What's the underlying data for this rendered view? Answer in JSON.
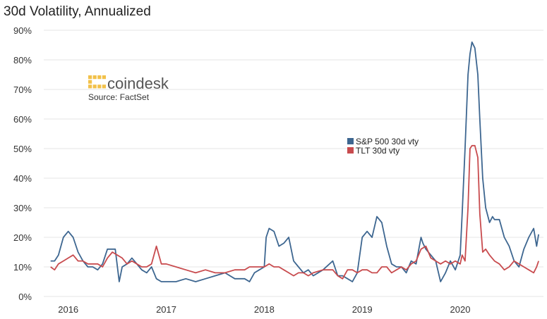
{
  "colors": {
    "sp500": "#3d6690",
    "tlt": "#c84b4e",
    "logo": "#f2c14a",
    "grid": "#e6e6e6"
  },
  "branding": {
    "logo_icon": "coindesk-logo-icon",
    "name": "coindesk",
    "source": "Source: FactSet"
  },
  "chart_data": {
    "type": "line",
    "title": "30d Volatility, Annualized",
    "xlabel": "",
    "ylabel": "",
    "xlim": [
      2015.85,
      2020.95
    ],
    "ylim": [
      0,
      90
    ],
    "y_ticks": [
      0,
      10,
      20,
      30,
      40,
      50,
      60,
      70,
      80,
      90
    ],
    "y_tick_labels": [
      "0%",
      "10%",
      "20%",
      "30%",
      "40%",
      "50%",
      "60%",
      "70%",
      "80%",
      "90%"
    ],
    "x_ticks": [
      2016.1,
      2017.1,
      2018.1,
      2019.1,
      2020.1
    ],
    "x_tick_labels": [
      "2016",
      "2017",
      "2018",
      "2019",
      "2020"
    ],
    "grid": "horizontal",
    "legend": "center-right",
    "series": [
      {
        "name": "S&P 500 30d vty",
        "color": "#3d6690",
        "x": [
          2015.92,
          2015.96,
          2016.0,
          2016.05,
          2016.1,
          2016.15,
          2016.2,
          2016.25,
          2016.3,
          2016.35,
          2016.4,
          2016.45,
          2016.5,
          2016.52,
          2016.58,
          2016.62,
          2016.65,
          2016.7,
          2016.75,
          2016.8,
          2016.85,
          2016.9,
          2016.95,
          2017.0,
          2017.05,
          2017.1,
          2017.2,
          2017.3,
          2017.4,
          2017.5,
          2017.6,
          2017.7,
          2017.8,
          2017.9,
          2017.95,
          2018.0,
          2018.05,
          2018.1,
          2018.12,
          2018.15,
          2018.2,
          2018.25,
          2018.3,
          2018.35,
          2018.4,
          2018.45,
          2018.5,
          2018.55,
          2018.6,
          2018.7,
          2018.8,
          2018.85,
          2018.9,
          2018.95,
          2019.0,
          2019.05,
          2019.1,
          2019.15,
          2019.2,
          2019.25,
          2019.3,
          2019.35,
          2019.4,
          2019.45,
          2019.5,
          2019.55,
          2019.6,
          2019.65,
          2019.7,
          2019.72,
          2019.75,
          2019.8,
          2019.85,
          2019.9,
          2019.95,
          2020.0,
          2020.05,
          2020.1,
          2020.12,
          2020.15,
          2020.18,
          2020.2,
          2020.22,
          2020.25,
          2020.28,
          2020.3,
          2020.33,
          2020.36,
          2020.4,
          2020.43,
          2020.45,
          2020.5,
          2020.55,
          2020.6,
          2020.65,
          2020.7,
          2020.75,
          2020.8,
          2020.85,
          2020.88,
          2020.9
        ],
        "values": [
          12,
          12,
          14,
          20,
          22,
          20,
          15,
          12,
          10,
          10,
          9,
          11,
          16,
          16,
          16,
          5,
          10,
          11,
          13,
          11,
          9,
          8,
          10,
          6,
          5,
          5,
          5,
          6,
          5,
          6,
          7,
          8,
          6,
          6,
          5,
          8,
          9,
          10,
          20,
          23,
          22,
          17,
          18,
          20,
          12,
          10,
          8,
          9,
          7,
          9,
          12,
          7,
          7,
          6,
          5,
          8,
          20,
          22,
          20,
          27,
          25,
          17,
          11,
          10,
          10,
          8,
          12,
          11,
          20,
          18,
          16,
          14,
          12,
          5,
          8,
          12,
          9,
          14,
          28,
          50,
          75,
          82,
          86,
          84,
          75,
          60,
          40,
          30,
          25,
          27,
          26,
          26,
          20,
          17,
          12,
          10,
          16,
          20,
          23,
          17,
          21
        ]
      },
      {
        "name": "TLT 30d vty",
        "color": "#c84b4e",
        "x": [
          2015.92,
          2015.96,
          2016.0,
          2016.05,
          2016.1,
          2016.15,
          2016.2,
          2016.25,
          2016.3,
          2016.35,
          2016.4,
          2016.45,
          2016.5,
          2016.55,
          2016.6,
          2016.65,
          2016.7,
          2016.75,
          2016.8,
          2016.85,
          2016.9,
          2016.95,
          2017.0,
          2017.05,
          2017.1,
          2017.2,
          2017.3,
          2017.4,
          2017.5,
          2017.6,
          2017.7,
          2017.8,
          2017.9,
          2017.95,
          2018.0,
          2018.05,
          2018.1,
          2018.15,
          2018.2,
          2018.25,
          2018.3,
          2018.35,
          2018.4,
          2018.45,
          2018.5,
          2018.55,
          2018.6,
          2018.7,
          2018.8,
          2018.85,
          2018.9,
          2018.95,
          2019.0,
          2019.05,
          2019.1,
          2019.15,
          2019.2,
          2019.25,
          2019.3,
          2019.35,
          2019.4,
          2019.45,
          2019.5,
          2019.55,
          2019.6,
          2019.65,
          2019.7,
          2019.75,
          2019.8,
          2019.85,
          2019.9,
          2019.95,
          2020.0,
          2020.05,
          2020.1,
          2020.12,
          2020.15,
          2020.18,
          2020.2,
          2020.22,
          2020.25,
          2020.28,
          2020.3,
          2020.33,
          2020.36,
          2020.4,
          2020.45,
          2020.5,
          2020.55,
          2020.6,
          2020.65,
          2020.7,
          2020.75,
          2020.8,
          2020.85,
          2020.88,
          2020.9
        ],
        "values": [
          10,
          9,
          11,
          12,
          13,
          14,
          12,
          12,
          11,
          11,
          11,
          10,
          13,
          15,
          14,
          13,
          11,
          12,
          11,
          10,
          10,
          11,
          17,
          11,
          11,
          10,
          9,
          8,
          9,
          8,
          8,
          9,
          9,
          10,
          10,
          10,
          10,
          11,
          10,
          10,
          9,
          8,
          7,
          8,
          8,
          7,
          8,
          9,
          9,
          7,
          6,
          9,
          9,
          8,
          9,
          9,
          8,
          8,
          10,
          10,
          8,
          9,
          10,
          9,
          11,
          12,
          16,
          17,
          13,
          12,
          11,
          12,
          11,
          12,
          11,
          14,
          12,
          30,
          50,
          51,
          51,
          47,
          28,
          15,
          16,
          14,
          12,
          11,
          9,
          10,
          12,
          11,
          10,
          9,
          8,
          10,
          12
        ]
      }
    ]
  }
}
